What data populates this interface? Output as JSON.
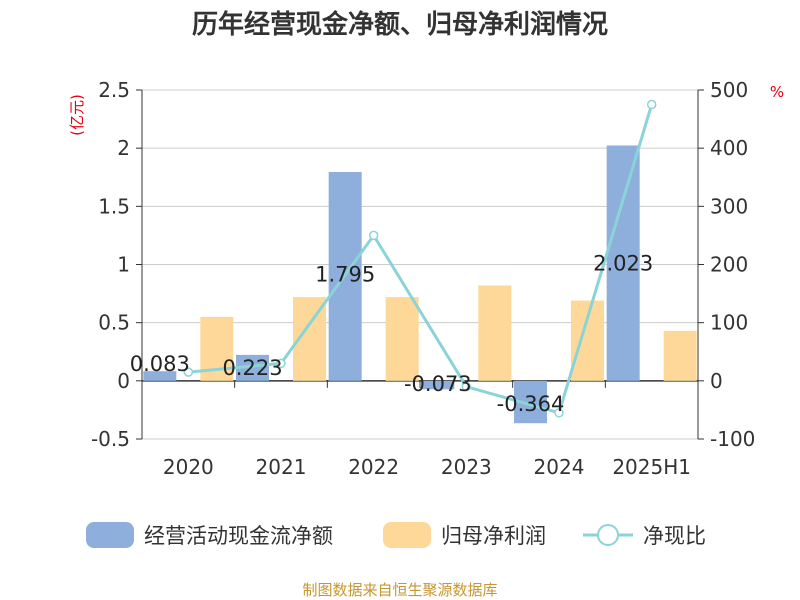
{
  "chart_data": {
    "type": "bar",
    "title": "历年经营现金净额、归母净利润情况",
    "left_axis_unit": "(亿元)",
    "right_axis_unit": "%",
    "categories": [
      "2020",
      "2021",
      "2022",
      "2023",
      "2024",
      "2025H1"
    ],
    "series": [
      {
        "name": "经营活动现金流净额",
        "type": "bar",
        "axis": "left",
        "color": "#8eaedb",
        "values": [
          0.083,
          0.223,
          1.795,
          -0.073,
          -0.364,
          2.023
        ],
        "labels": [
          "0.083",
          "0.223",
          "1.795",
          "-0.073",
          "-0.364",
          "2.023"
        ]
      },
      {
        "name": "归母净利润",
        "type": "bar",
        "axis": "left",
        "color": "#fed898",
        "values": [
          0.55,
          0.72,
          0.72,
          0.82,
          0.69,
          0.43
        ]
      },
      {
        "name": "净现比",
        "type": "line",
        "axis": "right",
        "color": "#8ad4d8",
        "values": [
          15,
          30,
          250,
          -10,
          -55,
          475
        ]
      }
    ],
    "ylim_left": [
      -0.5,
      2.5
    ],
    "yticks_left": [
      "-0.5",
      "0",
      "0.5",
      "1",
      "1.5",
      "2",
      "2.5"
    ],
    "ylim_right": [
      -100,
      500
    ],
    "yticks_right": [
      "-100",
      "0",
      "100",
      "200",
      "300",
      "400",
      "500"
    ],
    "grid": true,
    "legend_position": "bottom"
  },
  "source": "制图数据来自恒生聚源数据库"
}
